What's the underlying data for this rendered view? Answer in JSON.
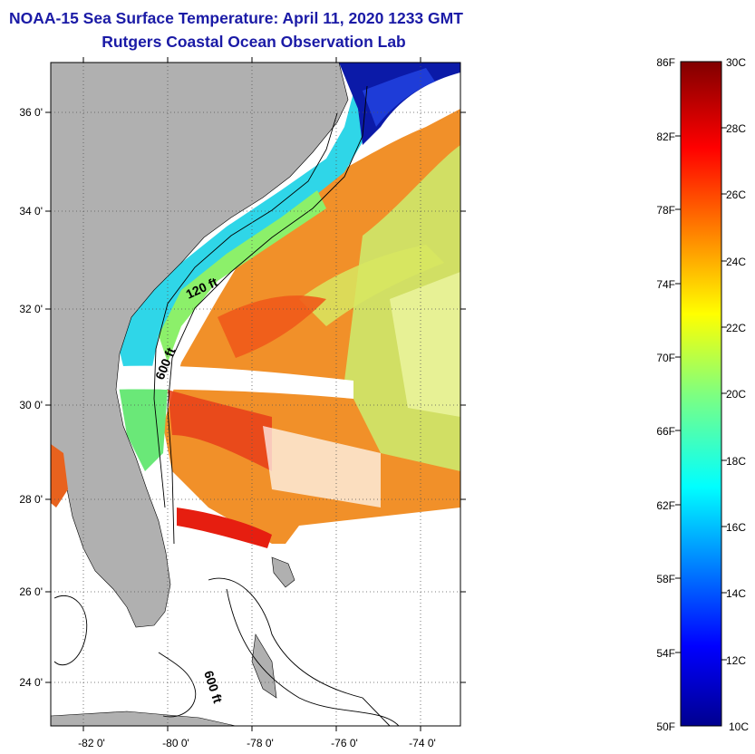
{
  "header": {
    "title": "NOAA-15 Sea Surface Temperature:  April 11, 2020 1233 GMT",
    "subtitle": "Rutgers Coastal Ocean Observation Lab"
  },
  "map": {
    "lat_labels": [
      "36 0'",
      "34 0'",
      "32 0'",
      "30 0'",
      "28 0'",
      "26 0'",
      "24 0'"
    ],
    "lon_labels": [
      "-82 0'",
      "-80 0'",
      "-78 0'",
      "-76 0'",
      "-74 0'"
    ],
    "contour_labels": [
      "120 ft",
      "600 ft",
      "600 ft"
    ],
    "land_color": "#b0b0b0",
    "grid": "dotted"
  },
  "colorbar": {
    "f_labels": [
      "86F",
      "82F",
      "78F",
      "74F",
      "70F",
      "66F",
      "62F",
      "58F",
      "54F",
      "50F"
    ],
    "c_labels": [
      "30C",
      "28C",
      "26C",
      "24C",
      "22C",
      "20C",
      "18C",
      "16C",
      "14C",
      "12C",
      "10C"
    ],
    "scale": "jet",
    "min_c": 10,
    "max_c": 30
  }
}
